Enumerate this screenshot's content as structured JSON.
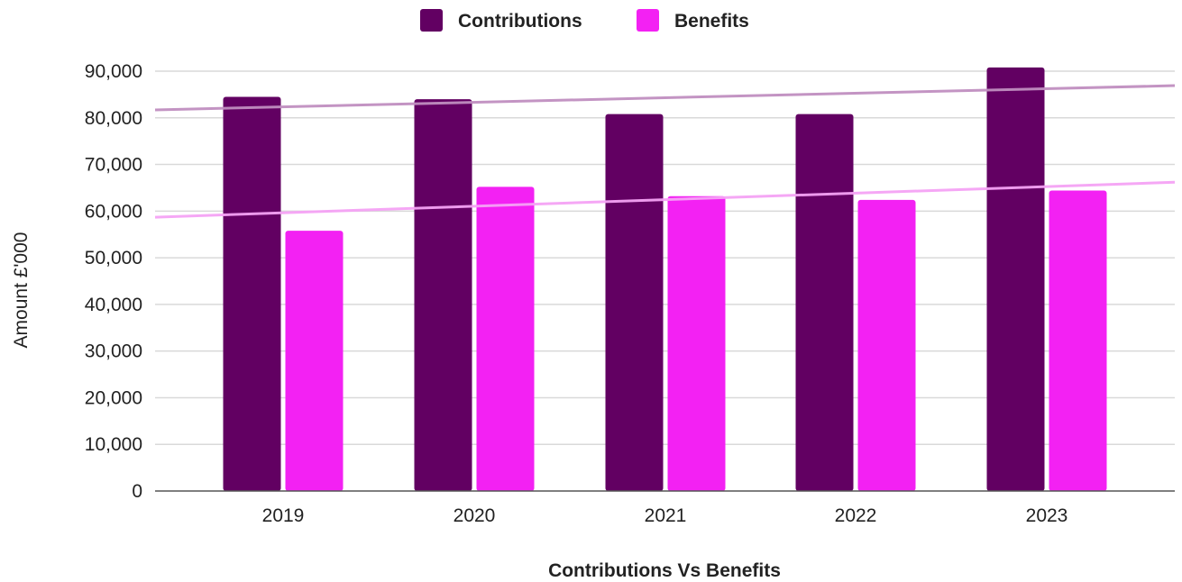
{
  "chart_data": {
    "type": "bar",
    "categories": [
      "2019",
      "2020",
      "2021",
      "2022",
      "2023"
    ],
    "series": [
      {
        "name": "Contributions",
        "values": [
          84500,
          84000,
          80800,
          80800,
          90800
        ],
        "color": "#620062"
      },
      {
        "name": "Benefits",
        "values": [
          55800,
          65200,
          63200,
          62400,
          64400
        ],
        "color": "#f321f3"
      }
    ],
    "trendlines": [
      {
        "series": "Contributions",
        "color": "#c08ec0",
        "start": 81700,
        "end": 86900
      },
      {
        "series": "Benefits",
        "color": "#f4a2f4",
        "start": 58700,
        "end": 66200
      }
    ],
    "title": "",
    "xlabel": "Contributions Vs Benefits",
    "ylabel": "Amount £'000",
    "ylim": [
      0,
      90000
    ],
    "yticks": [
      0,
      10000,
      20000,
      30000,
      40000,
      50000,
      60000,
      70000,
      80000,
      90000
    ],
    "ytick_labels": [
      "0",
      "10,000",
      "20,000",
      "30,000",
      "40,000",
      "50,000",
      "60,000",
      "70,000",
      "80,000",
      "90,000"
    ],
    "grid": true,
    "legend_position": "top-center"
  }
}
